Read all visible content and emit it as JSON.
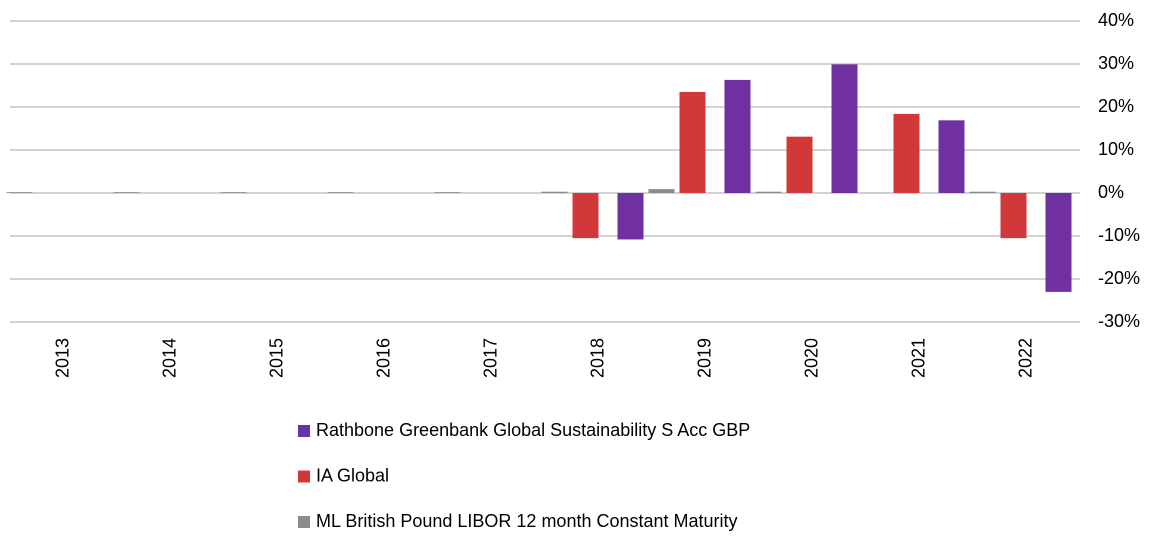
{
  "chart_data": {
    "type": "bar",
    "categories": [
      "2013",
      "2014",
      "2015",
      "2016",
      "2017",
      "2018",
      "2019",
      "2020",
      "2021",
      "2022"
    ],
    "series": [
      {
        "name": "Rathbone Greenbank Global Sustainability S Acc GBP",
        "color": "#7030a0",
        "values": [
          null,
          null,
          null,
          null,
          null,
          -10.8,
          26.3,
          29.9,
          16.9,
          -23.0
        ]
      },
      {
        "name": "IA Global",
        "color": "#d0383a",
        "values": [
          null,
          null,
          null,
          null,
          null,
          -10.5,
          23.5,
          13.1,
          18.4,
          -10.5
        ]
      },
      {
        "name": "ML British Pound LIBOR 12 month Constant Maturity",
        "color": "#8c8c8c",
        "values": [
          0.2,
          0.2,
          0.2,
          0.2,
          0.2,
          0.3,
          0.9,
          0.3,
          0.1,
          0.3
        ]
      }
    ],
    "ylim": [
      -30,
      40
    ],
    "yticks": [
      {
        "value": -30,
        "label": "-30%"
      },
      {
        "value": -20,
        "label": "-20%"
      },
      {
        "value": -10,
        "label": "-10%"
      },
      {
        "value": 0,
        "label": "0%"
      },
      {
        "value": 10,
        "label": "10%"
      },
      {
        "value": 20,
        "label": "20%"
      },
      {
        "value": 30,
        "label": "30%"
      },
      {
        "value": 40,
        "label": "40%"
      }
    ],
    "grid": true,
    "y_axis_side": "right",
    "legend": "bottom"
  }
}
